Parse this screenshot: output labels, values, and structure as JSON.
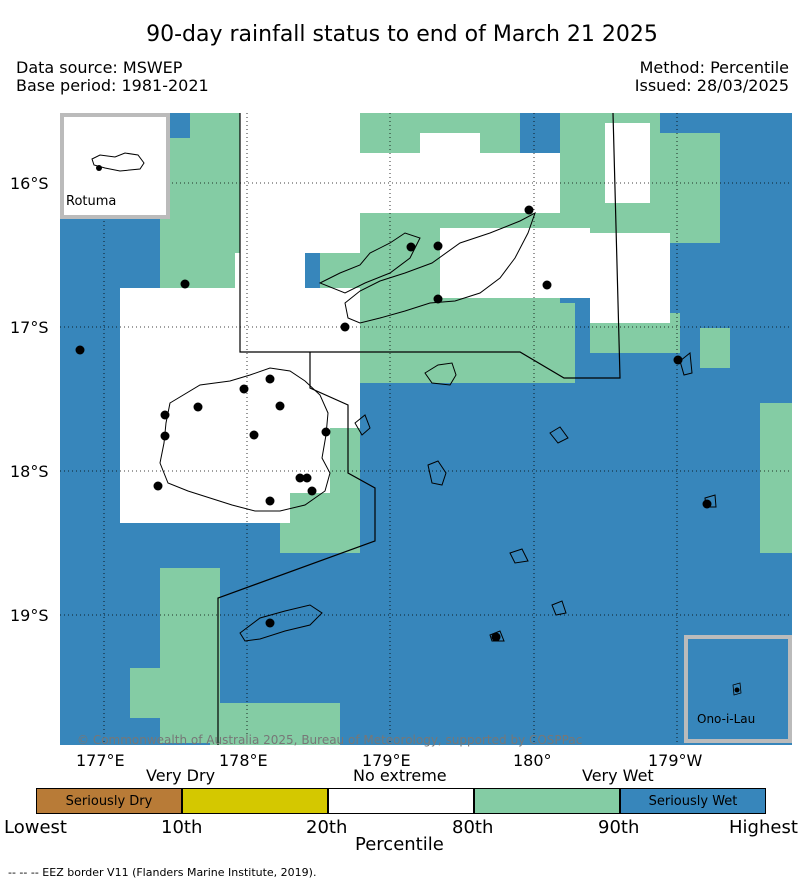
{
  "title": "90-day rainfall status to end of March 21 2025",
  "data_source": "Data source: MSWEP",
  "base_period": "Base period: 1981-2021",
  "method": "Method: Percentile",
  "issued": "Issued: 28/03/2025",
  "lat_ticks": [
    "16°S",
    "17°S",
    "18°S",
    "19°S"
  ],
  "lon_ticks": [
    "177°E",
    "178°E",
    "179°E",
    "180°",
    "179°W"
  ],
  "inset_rotuma": "Rotuma",
  "inset_ono": "Ono-i-Lau",
  "copyright": "© Commonwealth of Australia 2025, Bureau of Meteorology, supported by COSPPac",
  "legend": {
    "group_labels": [
      "Very Dry",
      "No extreme",
      "Very Wet"
    ],
    "boxes": [
      {
        "label": "Seriously Dry",
        "color": "#b87b37"
      },
      {
        "label": "",
        "color": "#d4c800"
      },
      {
        "label": "",
        "color": "#ffffff"
      },
      {
        "label": "",
        "color": "#84cca4"
      },
      {
        "label": "Seriously Wet",
        "color": "#3786bb"
      }
    ],
    "bounds": [
      "Lowest",
      "10th",
      "20th",
      "80th",
      "90th",
      "Highest"
    ],
    "axis_label": "Percentile"
  },
  "footnote": "-- -- -- EEZ border V11 (Flanders Marine Institute, 2019)."
}
